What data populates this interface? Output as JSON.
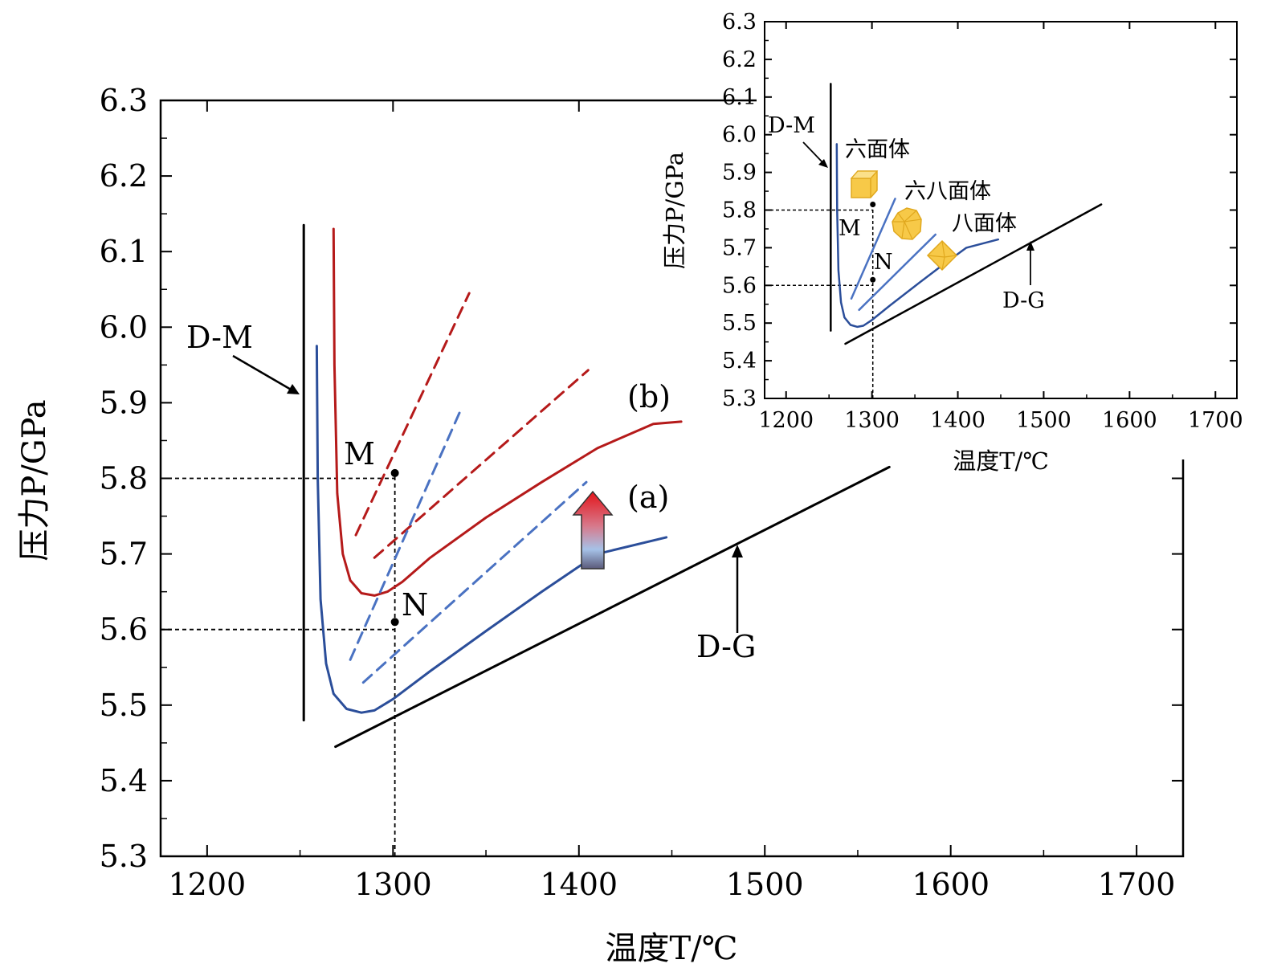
{
  "chart_data": [
    {
      "type": "line",
      "xlabel": "温度T/℃",
      "ylabel": "压力P/GPa",
      "xlim": [
        1175,
        1725
      ],
      "ylim": [
        5.3,
        6.3
      ],
      "x_ticks": [
        1200,
        1300,
        1400,
        1500,
        1600,
        1700
      ],
      "y_ticks": [
        5.3,
        5.4,
        5.5,
        5.6,
        5.7,
        5.8,
        5.9,
        6.0,
        6.1,
        6.2,
        6.3
      ],
      "x_tick_labels": [
        "1200",
        "1300",
        "1400",
        "1500",
        "1600",
        "1700"
      ],
      "y_tick_labels": [
        "5.3",
        "5.4",
        "5.5",
        "5.6",
        "5.7",
        "5.8",
        "5.9",
        "6.0",
        "6.1",
        "6.2",
        "6.3"
      ],
      "grid": false,
      "series": [
        {
          "id": "D-M",
          "color": "#000000",
          "style": "solid",
          "x": [
            1252,
            1252
          ],
          "y": [
            5.48,
            6.135
          ]
        },
        {
          "id": "D-G",
          "color": "#000000",
          "style": "solid",
          "x": [
            1269,
            1567
          ],
          "y": [
            5.445,
            5.815
          ]
        },
        {
          "id": "a",
          "color": "#2b4e9a",
          "style": "solid",
          "x": [
            1259,
            1259.5,
            1261,
            1264,
            1268,
            1275,
            1283,
            1290,
            1300,
            1320,
            1350,
            1380,
            1410,
            1447
          ],
          "y": [
            5.975,
            5.8,
            5.64,
            5.555,
            5.515,
            5.495,
            5.49,
            5.493,
            5.508,
            5.545,
            5.598,
            5.65,
            5.7,
            5.722
          ]
        },
        {
          "id": "b",
          "color": "#b51a1a",
          "style": "solid",
          "x": [
            1268,
            1268.5,
            1270,
            1273,
            1277,
            1283,
            1290,
            1297,
            1305,
            1320,
            1350,
            1380,
            1410,
            1440,
            1455
          ],
          "y": [
            6.13,
            5.95,
            5.78,
            5.7,
            5.665,
            5.648,
            5.645,
            5.65,
            5.663,
            5.695,
            5.748,
            5.795,
            5.84,
            5.872,
            5.875
          ]
        },
        {
          "id": "b-dash-1",
          "color": "#b51a1a",
          "style": "dashed",
          "x": [
            1280,
            1341
          ],
          "y": [
            5.725,
            6.045
          ]
        },
        {
          "id": "b-dash-2",
          "color": "#b51a1a",
          "style": "dashed",
          "x": [
            1290,
            1405
          ],
          "y": [
            5.695,
            5.943
          ]
        },
        {
          "id": "a-dash-1",
          "color": "#4a72c2",
          "style": "dashed",
          "x": [
            1277,
            1336
          ],
          "y": [
            5.56,
            5.888
          ]
        },
        {
          "id": "a-dash-2",
          "color": "#4a72c2",
          "style": "dashed",
          "x": [
            1284,
            1404
          ],
          "y": [
            5.53,
            5.795
          ]
        }
      ],
      "points": [
        {
          "label": "M",
          "x": 1301,
          "y": 5.807
        },
        {
          "label": "N",
          "x": 1301,
          "y": 5.61
        }
      ],
      "guides": [
        {
          "from": [
            1175,
            5.8
          ],
          "to": [
            1301,
            5.8
          ]
        },
        {
          "from": [
            1175,
            5.6
          ],
          "to": [
            1301,
            5.6
          ]
        },
        {
          "from": [
            1301,
            5.3
          ],
          "to": [
            1301,
            5.807
          ]
        }
      ],
      "labels": {
        "dm": "D-M",
        "dg": "D-G",
        "curve_a": "(a)",
        "curve_b": "(b)",
        "point_m": "M",
        "point_n": "N"
      }
    },
    {
      "type": "line",
      "xlabel": "温度T/℃",
      "ylabel": "压力P/GPa",
      "xlim": [
        1175,
        1725
      ],
      "ylim": [
        5.3,
        6.3
      ],
      "x_ticks": [
        1200,
        1300,
        1400,
        1500,
        1600,
        1700
      ],
      "y_ticks": [
        5.3,
        5.4,
        5.5,
        5.6,
        5.7,
        5.8,
        5.9,
        6.0,
        6.1,
        6.2,
        6.3
      ],
      "x_tick_labels": [
        "1200",
        "1300",
        "1400",
        "1500",
        "1600",
        "1700"
      ],
      "y_tick_labels": [
        "5.3",
        "5.4",
        "5.5",
        "5.6",
        "5.7",
        "5.8",
        "5.9",
        "6.0",
        "6.1",
        "6.2",
        "6.3"
      ],
      "grid": false,
      "series": [
        {
          "id": "D-M",
          "color": "#000000",
          "style": "solid",
          "x": [
            1252,
            1252
          ],
          "y": [
            5.48,
            6.135
          ]
        },
        {
          "id": "D-G",
          "color": "#000000",
          "style": "solid",
          "x": [
            1269,
            1567
          ],
          "y": [
            5.445,
            5.815
          ]
        },
        {
          "id": "a",
          "color": "#2b4e9a",
          "style": "solid",
          "x": [
            1259,
            1259.5,
            1261,
            1264,
            1268,
            1275,
            1283,
            1290,
            1300,
            1320,
            1350,
            1380,
            1410,
            1447
          ],
          "y": [
            5.975,
            5.8,
            5.64,
            5.555,
            5.515,
            5.495,
            5.49,
            5.493,
            5.508,
            5.545,
            5.598,
            5.65,
            5.7,
            5.722
          ]
        },
        {
          "id": "boundary-1",
          "color": "#4a72c2",
          "style": "solid",
          "x": [
            1276,
            1327
          ],
          "y": [
            5.565,
            5.83
          ]
        },
        {
          "id": "boundary-2",
          "color": "#4a72c2",
          "style": "solid",
          "x": [
            1285,
            1374
          ],
          "y": [
            5.535,
            5.735
          ]
        }
      ],
      "points": [
        {
          "label": "M",
          "x": 1301,
          "y": 5.815
        },
        {
          "label": "N",
          "x": 1301,
          "y": 5.615
        }
      ],
      "guides": [
        {
          "from": [
            1175,
            5.8
          ],
          "to": [
            1301,
            5.8
          ]
        },
        {
          "from": [
            1175,
            5.6
          ],
          "to": [
            1301,
            5.6
          ]
        },
        {
          "from": [
            1301,
            5.3
          ],
          "to": [
            1301,
            5.815
          ]
        }
      ],
      "labels": {
        "dm": "D-M",
        "dg": "D-G",
        "point_m": "M",
        "point_n": "N",
        "cube": "六面体",
        "cubo_octa": "六八面体",
        "octa": "八面体"
      },
      "crystal_colors": {
        "fill": "#f7c948",
        "edge": "#e0a81e",
        "light": "#fbe08a"
      }
    }
  ]
}
